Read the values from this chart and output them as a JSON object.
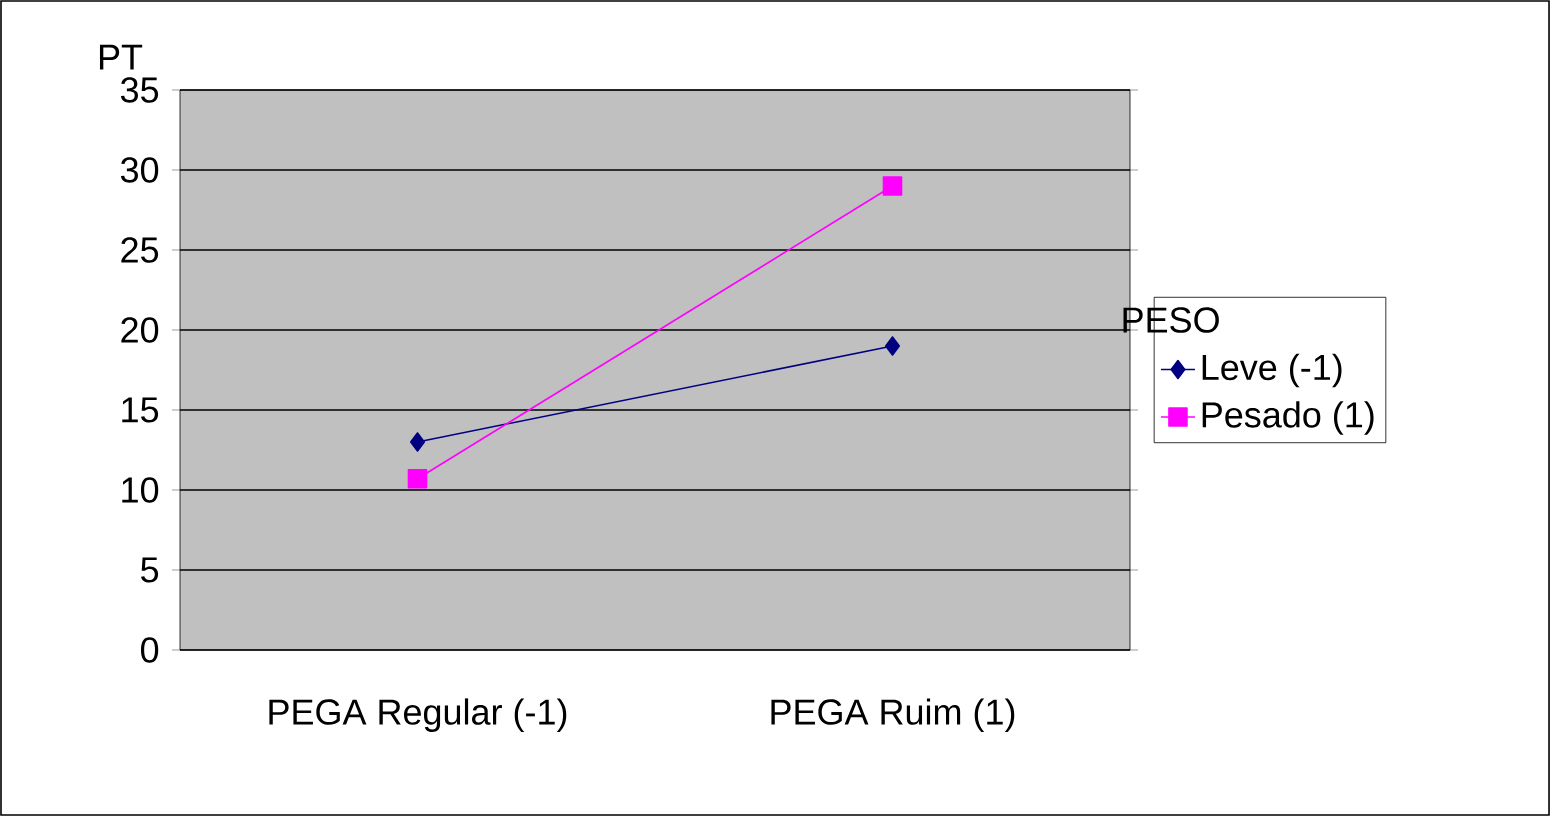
{
  "chart_data": {
    "type": "line",
    "ylabel": "PT",
    "legend_title": "PESO",
    "categories": [
      "PEGA Regular (-1)",
      "PEGA Ruim (1)"
    ],
    "series": [
      {
        "name": "Leve (-1)",
        "color": "#000080",
        "marker": "diamond",
        "values": [
          13,
          19
        ]
      },
      {
        "name": "Pesado (1)",
        "color": "#ff00ff",
        "marker": "square",
        "values": [
          10.7,
          29
        ]
      }
    ],
    "ylim": [
      0,
      35
    ],
    "yticks": [
      0,
      5,
      10,
      15,
      20,
      25,
      30,
      35
    ],
    "grid": "y",
    "legend": "right",
    "line_style": "solid"
  }
}
